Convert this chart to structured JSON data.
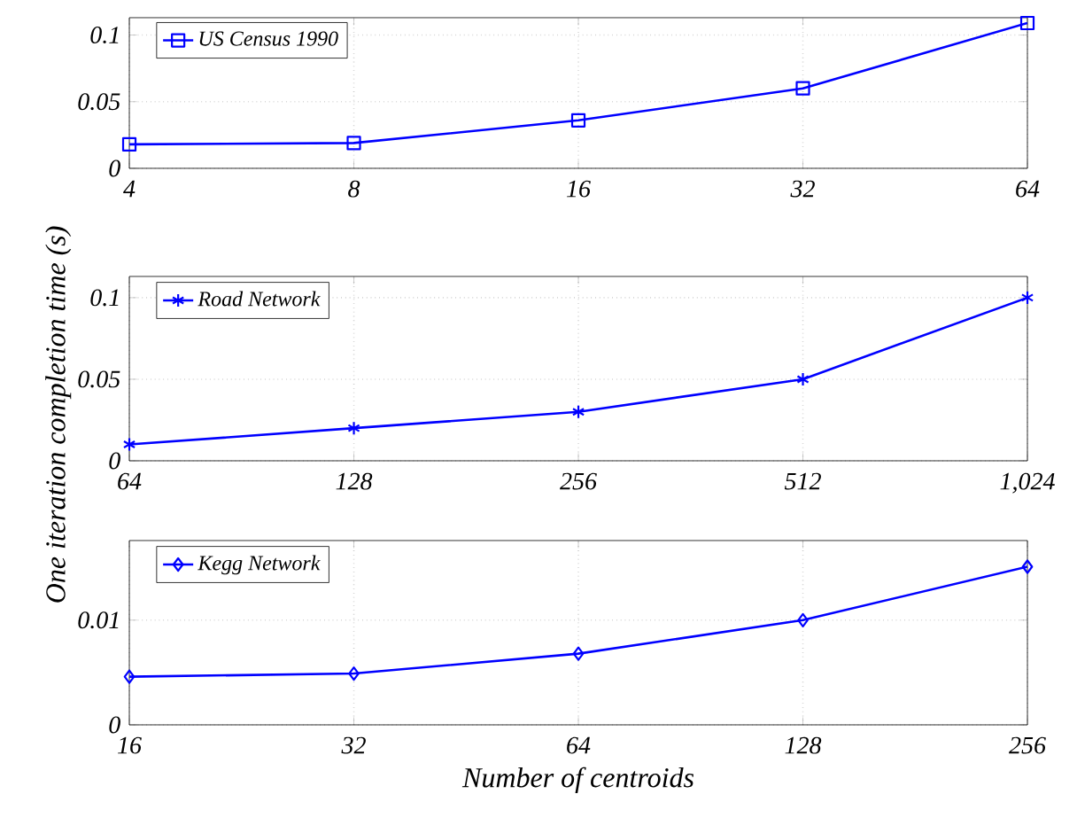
{
  "chart_data": [
    {
      "type": "line",
      "x": [
        4,
        8,
        16,
        32,
        64
      ],
      "series": [
        {
          "name": "US Census 1990",
          "color": "#0000ff",
          "values": [
            0.018,
            0.019,
            0.036,
            0.06,
            0.109
          ]
        }
      ],
      "xlim": [
        4,
        64
      ],
      "ylim": [
        0,
        0.113
      ],
      "xticks": [
        4,
        8,
        16,
        32,
        64
      ],
      "yticks": [
        0,
        0.05,
        0.1
      ],
      "log": "x",
      "grid": true,
      "legend": "top left",
      "marker": "square"
    },
    {
      "type": "line",
      "x": [
        64,
        128,
        256,
        512,
        1024
      ],
      "series": [
        {
          "name": "Road Network",
          "color": "#0000ff",
          "values": [
            0.01,
            0.02,
            0.03,
            0.05,
            0.1
          ]
        }
      ],
      "xlim": [
        64,
        1024
      ],
      "ylim": [
        0,
        0.113
      ],
      "xticks": [
        64,
        128,
        256,
        512,
        {
          "value": 1024,
          "label": "1,024"
        }
      ],
      "yticks": [
        0,
        0.05,
        0.1
      ],
      "log": "x",
      "grid": true,
      "legend": "top left",
      "marker": "cross",
      "ylabel": "One iteration completion time (s)"
    },
    {
      "type": "line",
      "x": [
        16,
        32,
        64,
        128,
        256
      ],
      "series": [
        {
          "name": "Kegg Network",
          "color": "#0000ff",
          "values": [
            0.0046,
            0.0049,
            0.0068,
            0.01,
            0.0151
          ]
        }
      ],
      "xlim": [
        16,
        256
      ],
      "ylim": [
        0,
        0.0176
      ],
      "xticks": [
        16,
        32,
        64,
        128,
        256
      ],
      "yticks": [
        0,
        0.01
      ],
      "log": "x",
      "grid": true,
      "legend": "top left",
      "marker": "diamond",
      "xlabel": "Number of centroids"
    }
  ]
}
